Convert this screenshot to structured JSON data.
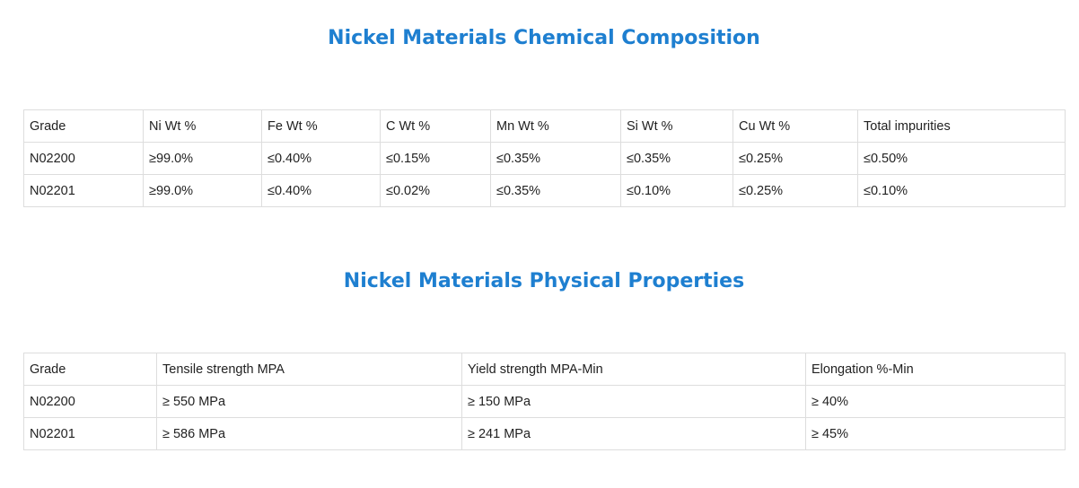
{
  "chemical": {
    "title": "Nickel Materials Chemical Composition",
    "headers": [
      "Grade",
      "Ni Wt %",
      "Fe Wt %",
      "C Wt %",
      "Mn Wt %",
      "Si Wt %",
      "Cu Wt %",
      "Total impurities"
    ],
    "rows": [
      [
        "N02200",
        "≥99.0%",
        "≤0.40%",
        "≤0.15%",
        "≤0.35%",
        "≤0.35%",
        "≤0.25%",
        "≤0.50%"
      ],
      [
        "N02201",
        "≥99.0%",
        "≤0.40%",
        "≤0.02%",
        "≤0.35%",
        "≤0.10%",
        "≤0.25%",
        "≤0.10%"
      ]
    ]
  },
  "physical": {
    "title": "Nickel Materials Physical Properties",
    "headers": [
      "Grade",
      "Tensile strength MPA",
      "Yield strength MPA-Min",
      "Elongation %-Min"
    ],
    "rows": [
      [
        "N02200",
        "≥ 550 MPa",
        "≥ 150 MPa",
        "≥ 40%"
      ],
      [
        "N02201",
        "≥ 586 MPa",
        "≥ 241 MPa",
        "≥ 45%"
      ]
    ]
  },
  "colors": {
    "title": "#1e7fd0",
    "border": "#dddddd",
    "text": "#222222"
  }
}
